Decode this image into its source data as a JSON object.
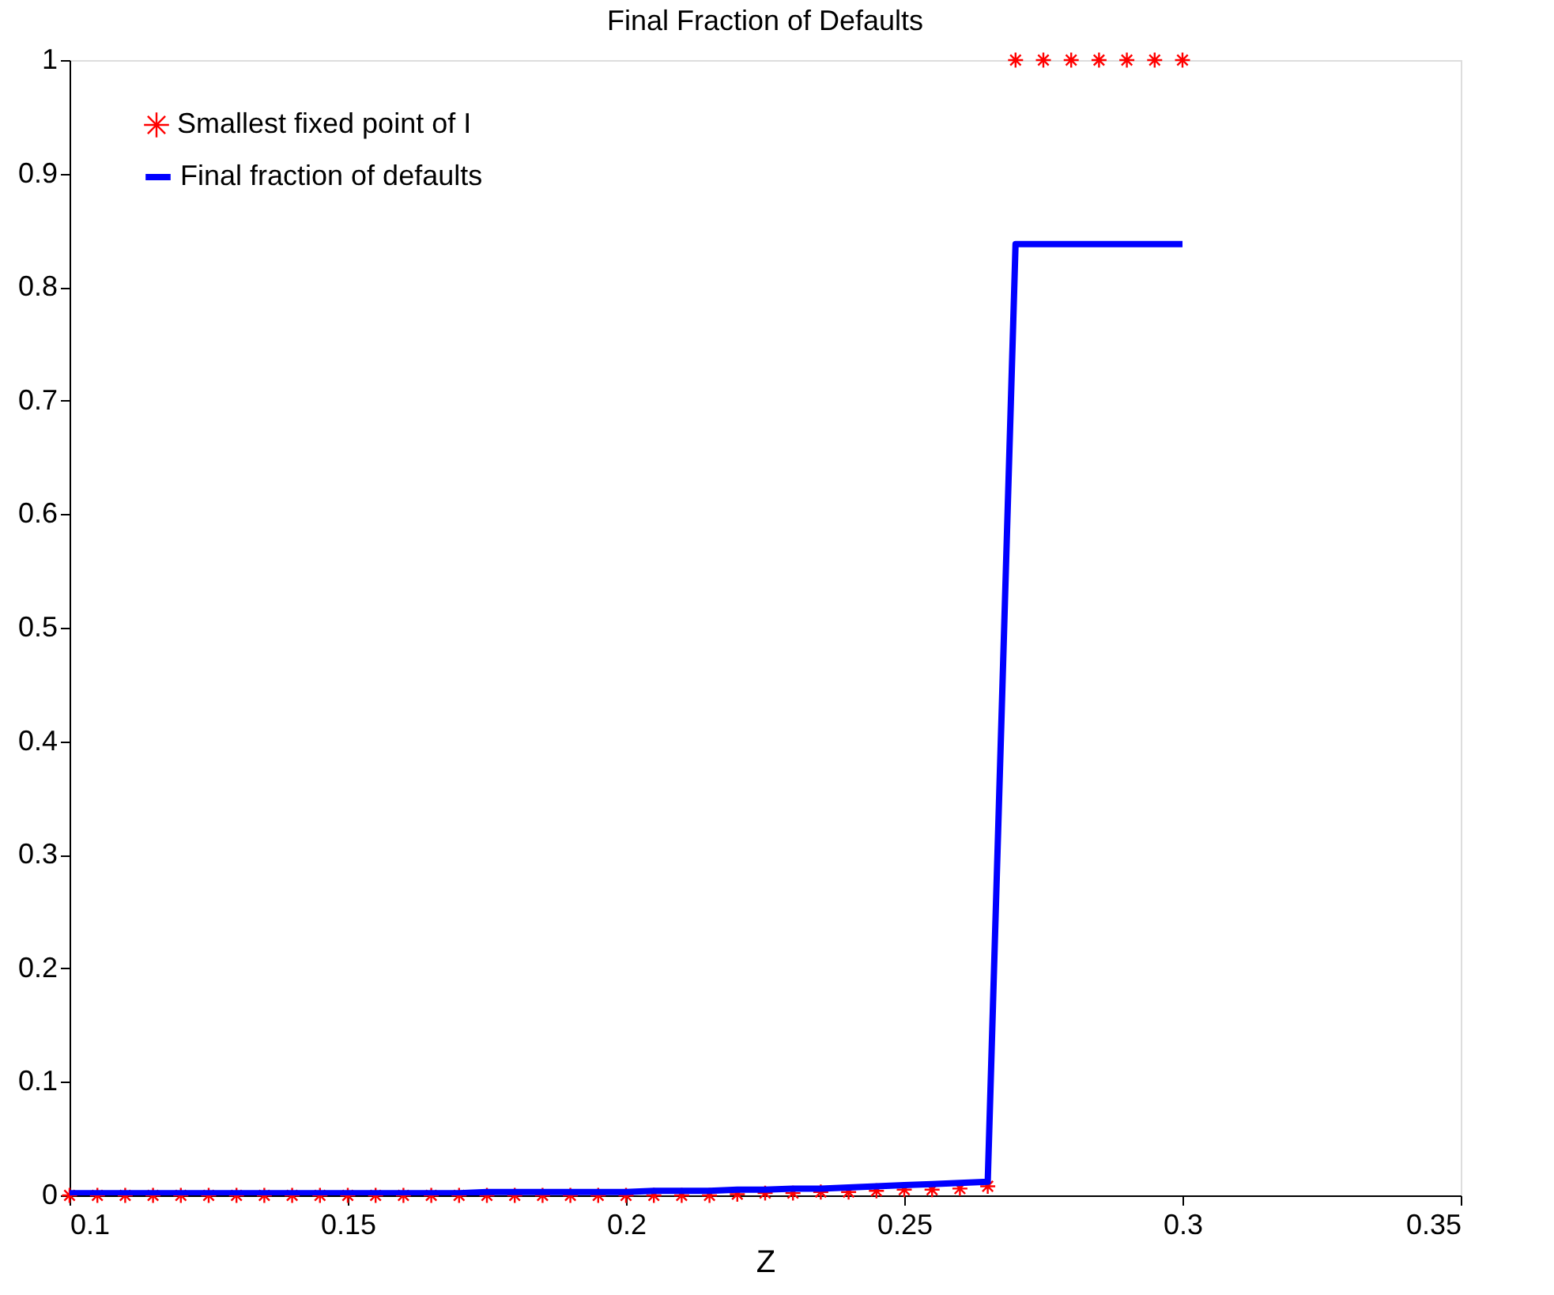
{
  "chart_data": {
    "type": "line",
    "title": "Final Fraction of Defaults",
    "xlabel": "Z",
    "x": [
      0.1,
      0.105,
      0.11,
      0.115,
      0.12,
      0.125,
      0.13,
      0.135,
      0.14,
      0.145,
      0.15,
      0.155,
      0.16,
      0.165,
      0.17,
      0.175,
      0.18,
      0.185,
      0.19,
      0.195,
      0.2,
      0.205,
      0.21,
      0.215,
      0.22,
      0.225,
      0.23,
      0.235,
      0.24,
      0.245,
      0.25,
      0.255,
      0.26,
      0.265,
      0.27,
      0.275,
      0.28,
      0.285,
      0.29,
      0.295,
      0.3
    ],
    "series": [
      {
        "name": "Smallest fixed point of I",
        "type": "scatter",
        "marker": "cross",
        "color": "#ff0000",
        "values": [
          0,
          0,
          0,
          0,
          0,
          0,
          0,
          0,
          0,
          0,
          0,
          0,
          0,
          0,
          0,
          0,
          0,
          0,
          0,
          0,
          0,
          0,
          0,
          0,
          0.001,
          0.002,
          0.002,
          0.003,
          0.003,
          0.004,
          0.005,
          0.005,
          0.006,
          0.008,
          1,
          1,
          1,
          1,
          1,
          1,
          1
        ]
      },
      {
        "name": "Final fraction of defaults",
        "marker": "none",
        "line_style": "solid",
        "color": "#0000ff",
        "values": [
          0.002,
          0.002,
          0.002,
          0.002,
          0.002,
          0.002,
          0.002,
          0.002,
          0.002,
          0.002,
          0.002,
          0.002,
          0.002,
          0.002,
          0.002,
          0.003,
          0.003,
          0.003,
          0.003,
          0.003,
          0.003,
          0.004,
          0.004,
          0.004,
          0.005,
          0.005,
          0.006,
          0.006,
          0.007,
          0.008,
          0.009,
          0.01,
          0.011,
          0.012,
          0.838,
          0.838,
          0.838,
          0.838,
          0.838,
          0.838,
          0.838
        ]
      }
    ],
    "xlim": [
      0.1,
      0.35
    ],
    "xticks": [
      0.1,
      0.15,
      0.2,
      0.25,
      0.3,
      0.35
    ],
    "ylim": [
      0,
      1
    ],
    "yticks": [
      0,
      0.1,
      0.2,
      0.3,
      0.4,
      0.5,
      0.6,
      0.7,
      0.8,
      0.9,
      1
    ],
    "grid": false,
    "legend": "top left"
  }
}
